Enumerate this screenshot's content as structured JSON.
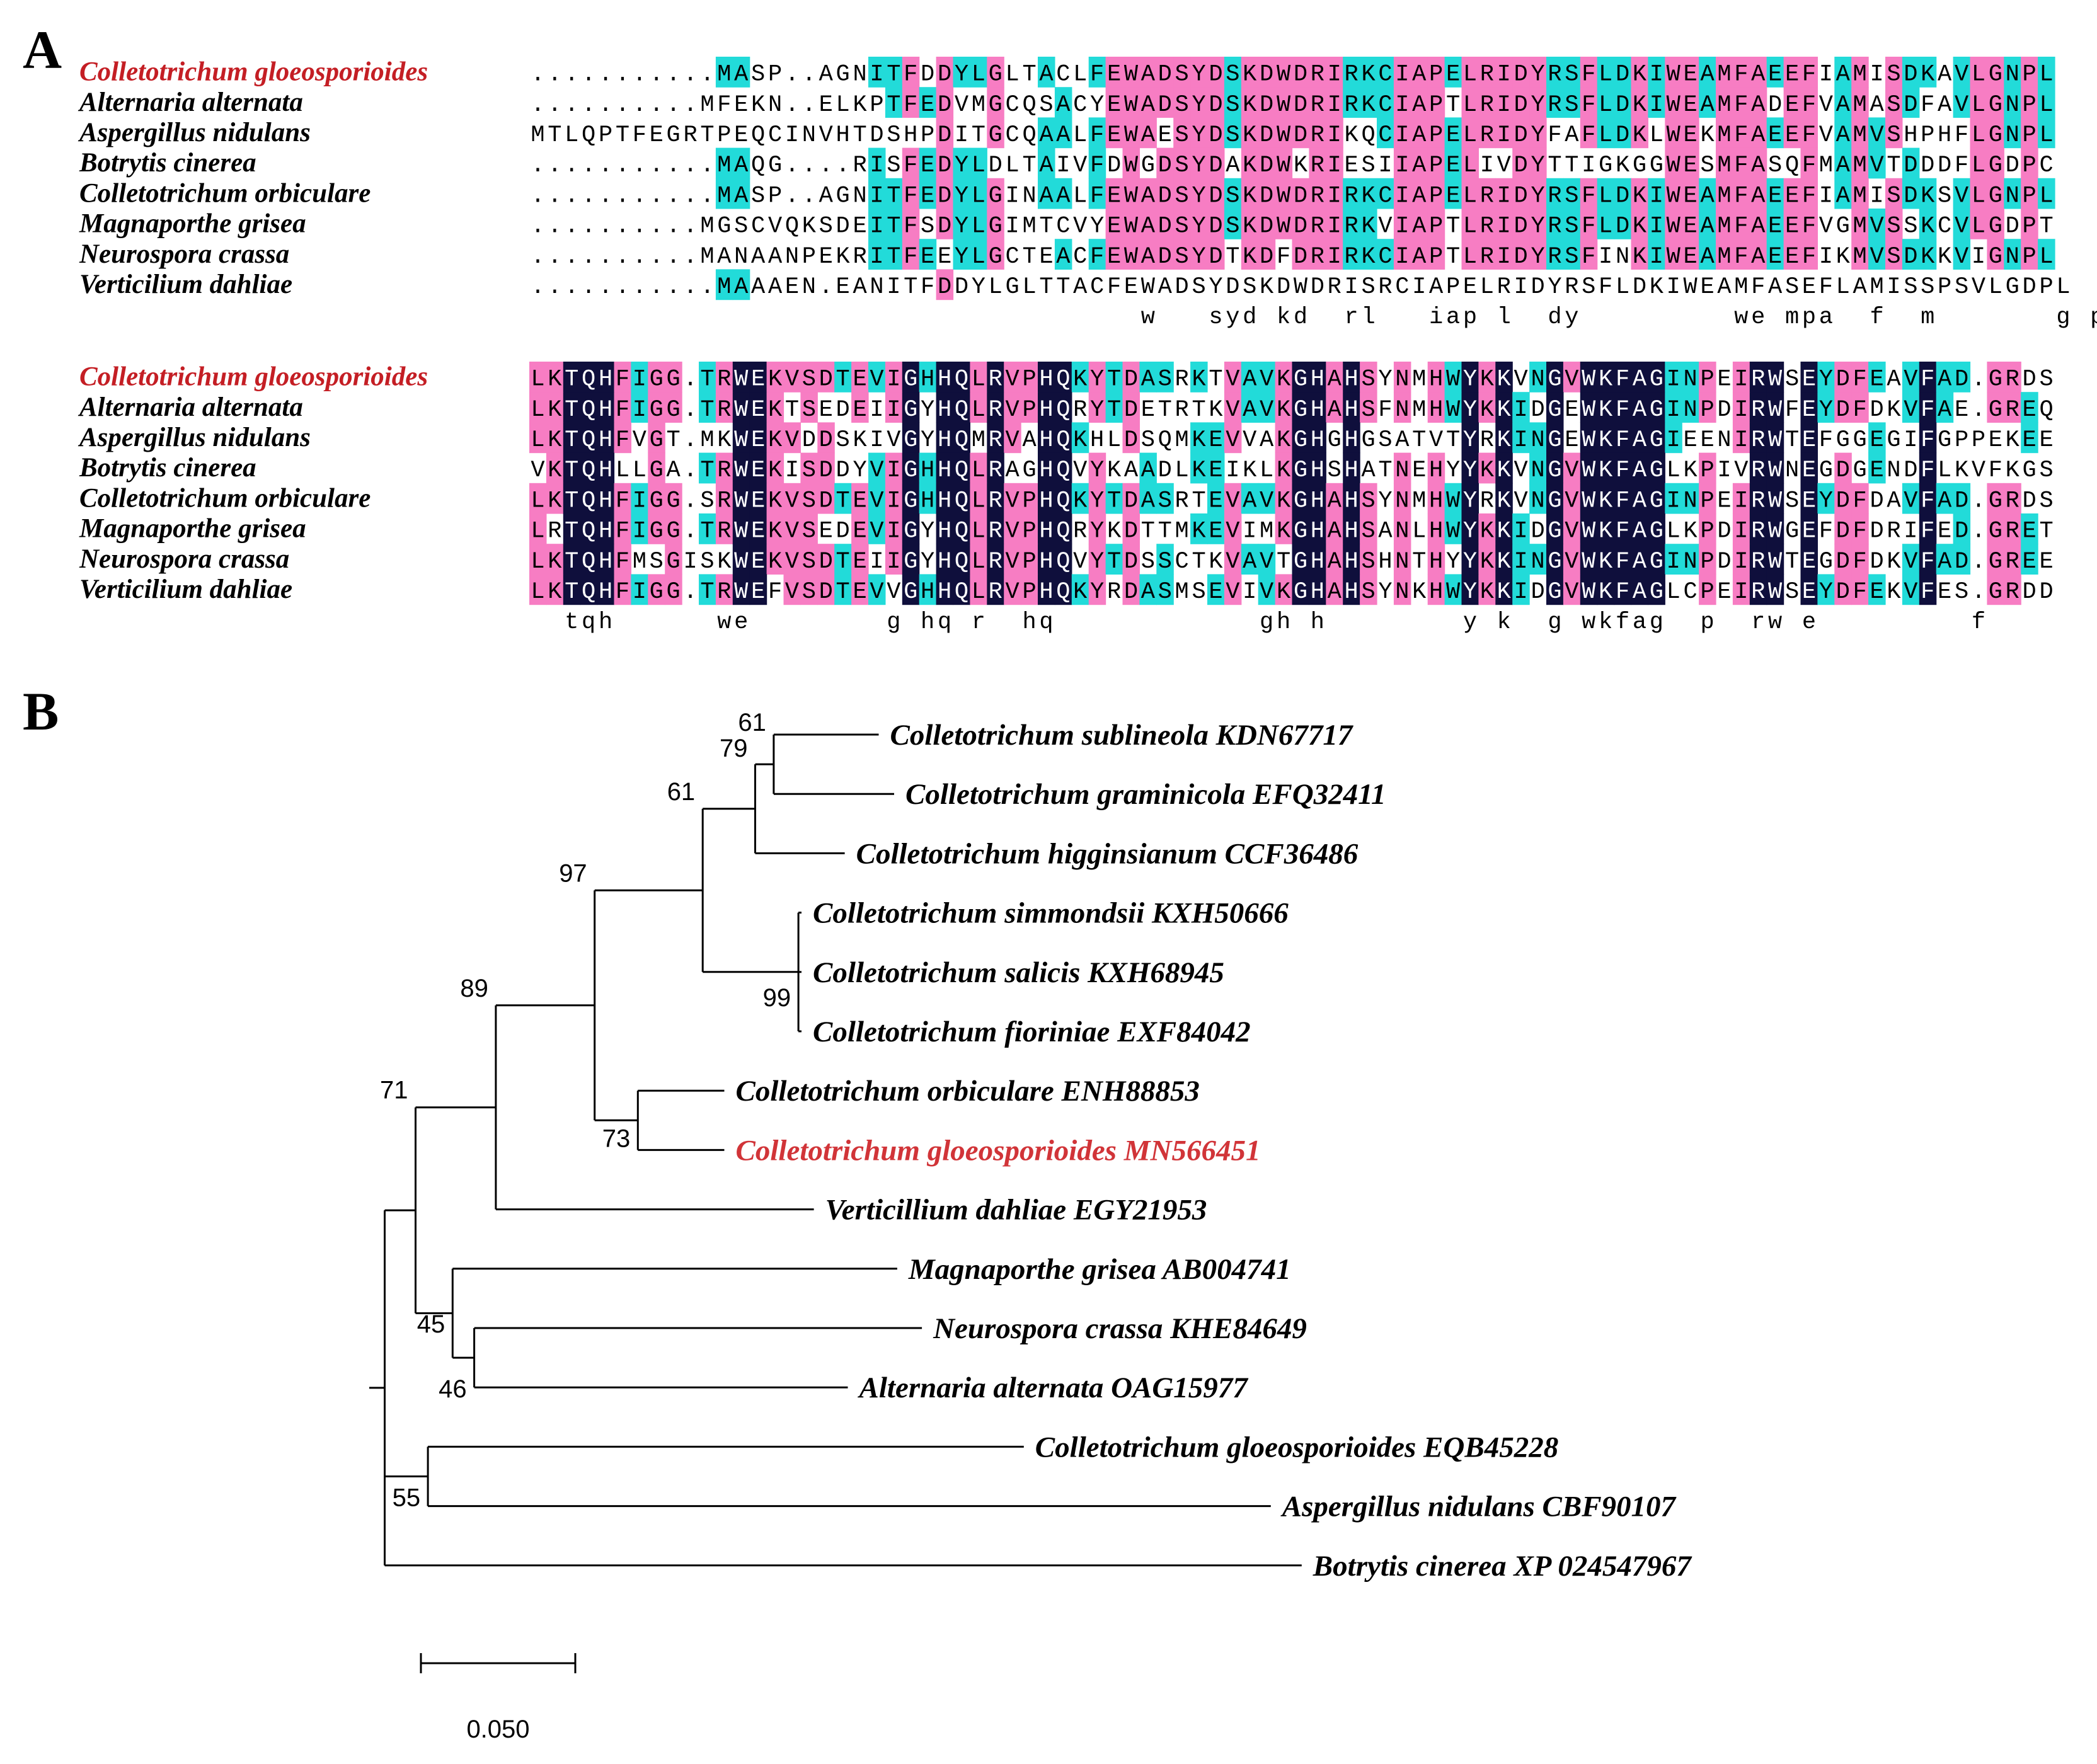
{
  "figure": {
    "panel_a_label": "A",
    "panel_b_label": "B"
  },
  "alignment": {
    "colors": {
      "identical": "#0f0f3c",
      "high": "#f77dc3",
      "partial": "#22dbd9",
      "highlight_name": "#c41e24",
      "text": "#000000",
      "text_on_dark": "#ffffff"
    },
    "blocks": [
      {
        "species": [
          {
            "name": "Colletotrichum gloeosporioides",
            "highlight": true,
            "seq": "...........MASP..AGNITFDDYLGLTACLFEWADSYDSKDWDRIRKCIAPELRIDYRSFLDKIWEAMFAEEFIAMISDKAVLGNPL"
          },
          {
            "name": "Alternaria alternata",
            "highlight": false,
            "seq": "..........MFEKN..ELKPTFEDVMGCQSACYEWADSYDSKDWDRIRKCIAPTLRIDYRSFLDKIWEAMFADEFVAMASDFAVLGNPL"
          },
          {
            "name": "Aspergillus nidulans",
            "highlight": false,
            "seq": "MTLQPTFEGRTPEQCINVHTDSHPDITGCQAALFEWAESYDSKDWDRIKQCIAPELRIDYFAFLDKLWEKMFAEEFVAMVSHPHFLGNPL"
          },
          {
            "name": "Botrytis cinerea",
            "highlight": false,
            "seq": "...........MAQG....RISFEDYLDLTAIVFDWGDSYDAKDWKRIESIIAPELIVDYTTIGKGGWESMFASQFMAMVTDDDFLGDPC"
          },
          {
            "name": "Colletotrichum orbiculare",
            "highlight": false,
            "seq": "...........MASP..AGNITFEDYLGINAALFEWADSYDSKDWDRIRKCIAPELRIDYRSFLDKIWEAMFAEEFIAMISDKSVLGNPL"
          },
          {
            "name": "Magnaporthe grisea",
            "highlight": false,
            "seq": "..........MGSCVQKSDEITFSDYLGIMTCVYEWADSYDSKDWDRIRKVIAPTLRIDYRSFLDKIWEAMFAEEFVGMVSSKCVLGDPT"
          },
          {
            "name": "Neurospora crassa",
            "highlight": false,
            "seq": "..........MANAANPEKRITFEEYLGCTEACFEWADSYDTKDFDRIRKCIAPTLRIDYRSFINKIWEAMFAEEFIKMVSDKKVIGNPL"
          },
          {
            "name": "Verticilium dahliae",
            "highlight": false,
            "seq": "...........MAAAEN.EANITFDDYLGLTTACFEWADSYDSKDWDRISRCIAPELRIDYRSFLDKIWEAMFASEFLAMISSPSVLGDPL"
          }
        ],
        "consensus": "                                    w   syd kd  rl   iap l  dy         we mpa  f  m       g p"
      },
      {
        "species": [
          {
            "name": "Colletotrichum gloeosporioides",
            "highlight": true,
            "seq": "LKTQHFIGG.TRWEKVSDTEVIGHHQLRVPHQKYTDASRKTVAVKGHAHSYNMHWYKKVNGVWKFAGINPEIRWSEYDFEAVFAD.GRDS"
          },
          {
            "name": "Alternaria alternata",
            "highlight": false,
            "seq": "LKTQHFIGG.TRWEKTSEDEIIGYHQLRVPHQRYTDETRTKVAVKGHAHSFNMHWYKKIDGEWKFAGINPDIRWFEYDFDKVFAE.GREQ"
          },
          {
            "name": "Aspergillus nidulans",
            "highlight": false,
            "seq": "LKTQHFVGT.MKWEKVDDSKIVGYHQMRVAHQKHLDSQMKEVVAKGHGHGSATVTYRKINGEWKFAGIEENIRWTEFGGEGIFGPPEKEE"
          },
          {
            "name": "Botrytis cinerea",
            "highlight": false,
            "seq": "VKTQHLLGA.TRWEKISDDYVIGHHQLRAGHQVYKAADLKEIKLKGHSHATNEHYYKKVNGVWKFAGLKPIVRWNEGDGENDFLKVFKGS"
          },
          {
            "name": "Colletotrichum orbiculare",
            "highlight": false,
            "seq": "LKTQHFIGG.SRWEKVSDTEVIGHHQLRVPHQKYTDASRTEVAVKGHAHSYNMHWYRKVNGVWKFAGINPEIRWSEYDFDAVFAD.GRDS"
          },
          {
            "name": "Magnaporthe grisea",
            "highlight": false,
            "seq": "LRTQHFIGG.TRWEKVSEDEVIGYHQLRVPHQRYKDTTMKEVIMKGHAHSANLHWYKKIDGVWKFAGLKPDIRWGEFDFDRIFED.GRET"
          },
          {
            "name": "Neurospora crassa",
            "highlight": false,
            "seq": "LKTQHFMSGISKWEKVSDTEIIGYHQLRVPHQVYTDSSCTKVAVTGHAHSHNTHYYKKINGVWKFAGINPDIRWTEGDFDKVFAD.GREE"
          },
          {
            "name": "Verticilium dahliae",
            "highlight": false,
            "seq": "LKTQHFIGG.TRWEFVSDTEVVGHHQLRVPHQKYRDASMSEVIVKGHAHSYNKHWYKKIDGVWKFAGLCPEIRWSEYDFEKVFES.GRDD"
          }
        ],
        "consensus": "  tqh      we        g hq r  hq            gh h        y k  g wkfag  p  rw e         f"
      }
    ]
  },
  "tree": {
    "leaves": [
      {
        "label": "Colletotrichum sublineola KDN67717",
        "highlight": false
      },
      {
        "label": "Colletotrichum graminicola EFQ32411",
        "highlight": false
      },
      {
        "label": "Colletotrichum higginsianum CCF36486",
        "highlight": false
      },
      {
        "label": "Colletotrichum simmondsii KXH50666",
        "highlight": false
      },
      {
        "label": "Colletotrichum salicis KXH68945",
        "highlight": false
      },
      {
        "label": "Colletotrichum fioriniae EXF84042",
        "highlight": false
      },
      {
        "label": "Colletotrichum orbiculare ENH88853",
        "highlight": false
      },
      {
        "label": "Colletotrichum gloeosporioides MN566451",
        "highlight": true
      },
      {
        "label": "Verticillium dahliae EGY21953",
        "highlight": false
      },
      {
        "label": "Magnaporthe grisea AB004741",
        "highlight": false
      },
      {
        "label": "Neurospora crassa KHE84649",
        "highlight": false
      },
      {
        "label": "Alternaria alternata OAG15977",
        "highlight": false
      },
      {
        "label": "Colletotrichum gloeosporioides EQB45228",
        "highlight": false
      },
      {
        "label": "Aspergillus nidulans CBF90107",
        "highlight": false
      },
      {
        "label": "Botrytis cinerea XP 024547967",
        "highlight": false
      }
    ],
    "branch_lengths": {
      "root_ext": 0.005,
      "n71": 0.01,
      "n55": 0.014,
      "n89": 0.026,
      "n45": 0.012,
      "n97": 0.032,
      "n46": 0.007,
      "n61a": 0.035,
      "n73": 0.014,
      "n79": 0.017,
      "n99": 0.031,
      "n61b": 0.006,
      "sublineola": 0.034,
      "graminicola": 0.039,
      "higginsianum": 0.029,
      "simmondsii": 0.001,
      "salicis": 0.001,
      "fioriniae": 0.001,
      "orbiculare": 0.028,
      "gloeo_MN": 0.028,
      "verticillium": 0.103,
      "magnaporthe": 0.144,
      "neurospora": 0.145,
      "alternaria": 0.121,
      "gloeo_EQB": 0.193,
      "aspergillus": 0.273,
      "botrytis": 0.297
    },
    "bootstrap": {
      "n61b": "61",
      "n79": "79",
      "n61a": "61",
      "n97": "97",
      "n99": "99",
      "n89": "89",
      "n73": "73",
      "n71": "71",
      "n45": "45",
      "n46": "46",
      "n55": "55"
    },
    "scale_bar": {
      "value": 0.05,
      "label": "0.050"
    },
    "colors": {
      "highlight": "#d13438",
      "text": "#000000"
    }
  }
}
